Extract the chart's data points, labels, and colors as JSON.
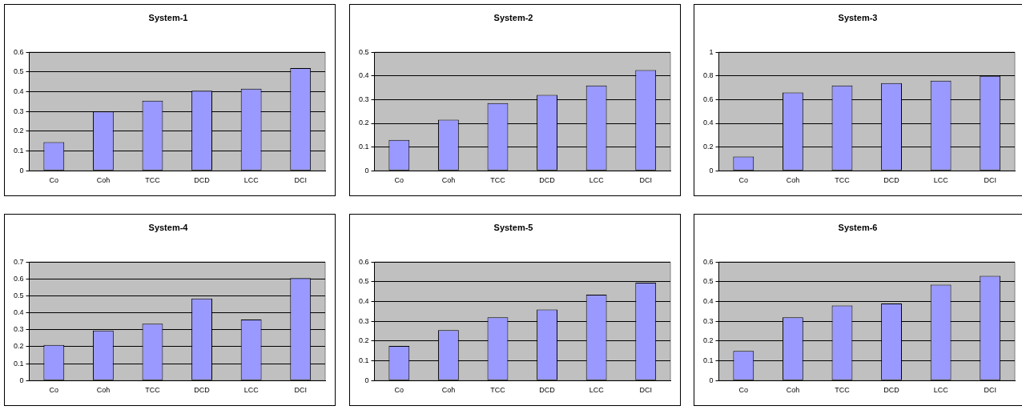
{
  "chart_data": [
    {
      "type": "bar",
      "title": "System-1",
      "categories": [
        "Co",
        "Coh",
        "TCC",
        "DCD",
        "LCC",
        "DCI"
      ],
      "values": [
        0.145,
        0.3,
        0.355,
        0.405,
        0.415,
        0.52
      ],
      "color": "#9999ff",
      "ylim": [
        0,
        0.6
      ],
      "yticks": [
        0,
        0.1,
        0.2,
        0.3,
        0.4,
        0.5,
        0.6
      ],
      "grid": "y",
      "legend": false
    },
    {
      "type": "bar",
      "title": "System-2",
      "categories": [
        "Co",
        "Coh",
        "TCC",
        "DCD",
        "LCC",
        "DCI"
      ],
      "values": [
        0.13,
        0.215,
        0.285,
        0.32,
        0.36,
        0.425
      ],
      "color": "#9999ff",
      "ylim": [
        0,
        0.5
      ],
      "yticks": [
        0,
        0.1,
        0.2,
        0.3,
        0.4,
        0.5
      ],
      "grid": "y",
      "legend": false
    },
    {
      "type": "bar",
      "title": "System-3",
      "categories": [
        "Co",
        "Coh",
        "TCC",
        "DCD",
        "LCC",
        "DCI"
      ],
      "values": [
        0.12,
        0.66,
        0.72,
        0.74,
        0.76,
        0.8
      ],
      "color": "#9999ff",
      "ylim": [
        0,
        1
      ],
      "yticks": [
        0,
        0.2,
        0.4,
        0.6,
        0.8,
        1
      ],
      "grid": "y",
      "legend": false
    },
    {
      "type": "bar",
      "title": "System-4",
      "categories": [
        "Co",
        "Coh",
        "TCC",
        "DCD",
        "LCC",
        "DCI"
      ],
      "values": [
        0.21,
        0.295,
        0.335,
        0.485,
        0.36,
        0.605
      ],
      "color": "#9999ff",
      "ylim": [
        0,
        0.7
      ],
      "yticks": [
        0,
        0.1,
        0.2,
        0.3,
        0.4,
        0.5,
        0.6,
        0.7
      ],
      "grid": "y",
      "legend": false
    },
    {
      "type": "bar",
      "title": "System-5",
      "categories": [
        "Co",
        "Coh",
        "TCC",
        "DCD",
        "LCC",
        "DCI"
      ],
      "values": [
        0.175,
        0.255,
        0.32,
        0.36,
        0.435,
        0.495
      ],
      "color": "#9999ff",
      "ylim": [
        0,
        0.6
      ],
      "yticks": [
        0,
        0.1,
        0.2,
        0.3,
        0.4,
        0.5,
        0.6
      ],
      "grid": "y",
      "legend": false
    },
    {
      "type": "bar",
      "title": "System-6",
      "categories": [
        "Co",
        "Coh",
        "TCC",
        "DCD",
        "LCC",
        "DCI"
      ],
      "values": [
        0.15,
        0.32,
        0.38,
        0.39,
        0.485,
        0.53
      ],
      "color": "#9999ff",
      "ylim": [
        0,
        0.6
      ],
      "yticks": [
        0,
        0.1,
        0.2,
        0.3,
        0.4,
        0.5,
        0.6
      ],
      "grid": "y",
      "legend": false
    }
  ]
}
